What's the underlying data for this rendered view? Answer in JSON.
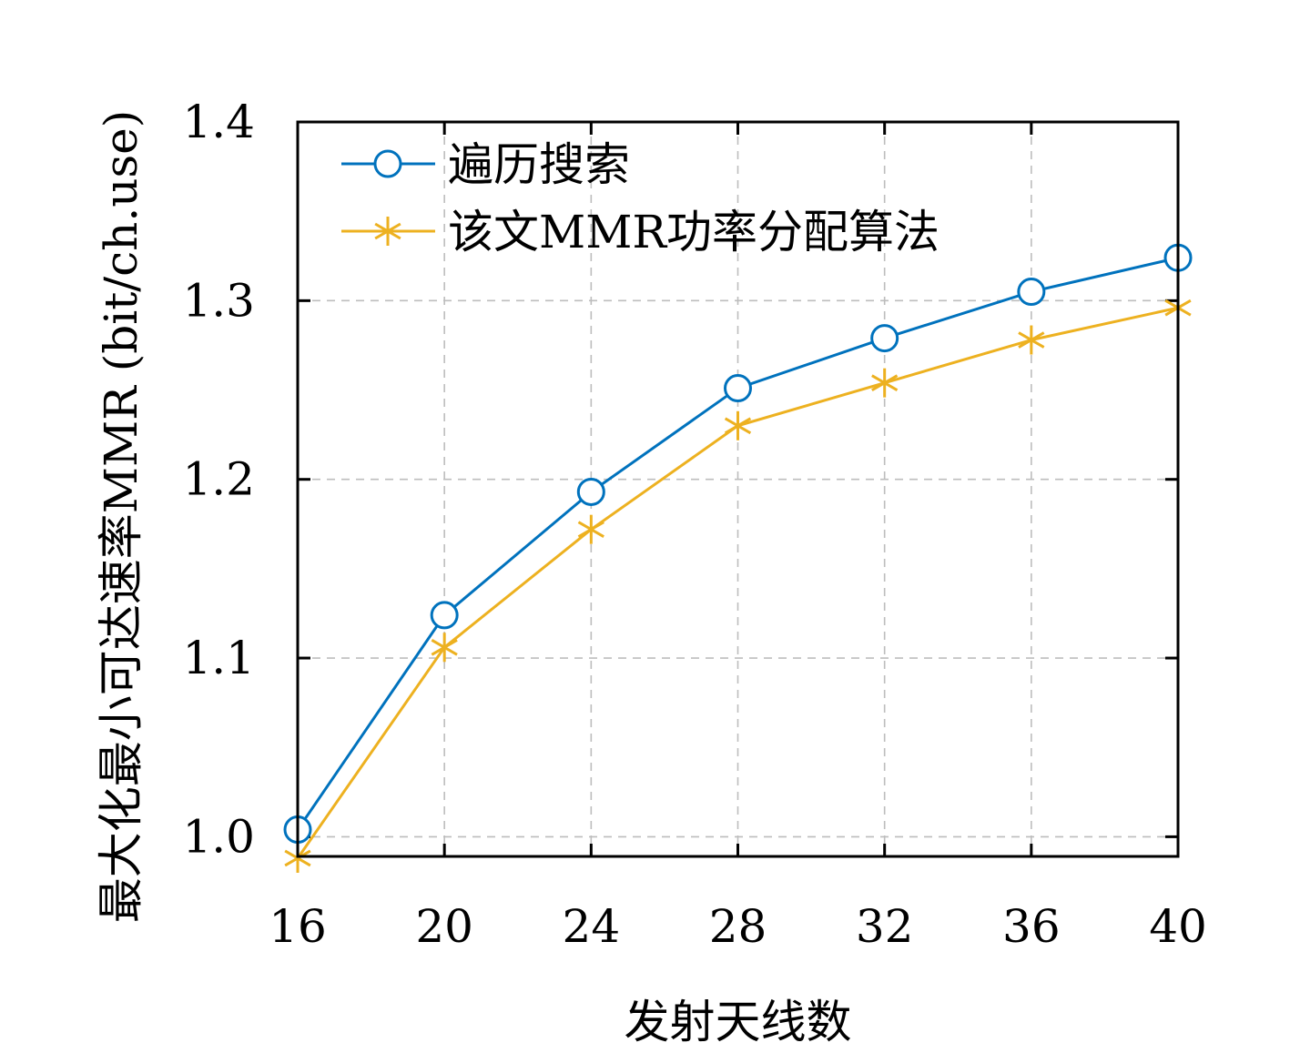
{
  "chart_data": {
    "type": "line",
    "x": [
      16,
      20,
      24,
      28,
      32,
      36,
      40
    ],
    "series": [
      {
        "name": "遍历搜索",
        "marker": "circle",
        "color": "#0072BD",
        "values": [
          1.004,
          1.124,
          1.193,
          1.251,
          1.279,
          1.305,
          1.324
        ]
      },
      {
        "name": "该文MMR功率分配算法",
        "marker": "asterisk",
        "color": "#EDB120",
        "values": [
          0.988,
          1.106,
          1.172,
          1.23,
          1.254,
          1.278,
          1.296
        ]
      }
    ],
    "xlabel": "发射天线数",
    "ylabel": "最大化最小可达速率MMR (bit/ch.use)",
    "xticks": [
      "16",
      "20",
      "24",
      "28",
      "32",
      "36",
      "40"
    ],
    "yticks": [
      "1.0",
      "1.1",
      "1.2",
      "1.3",
      "1.4"
    ],
    "xlim": [
      16,
      40
    ],
    "ylim": [
      0.989,
      1.4
    ],
    "grid": true,
    "legend_position": "top-left"
  }
}
